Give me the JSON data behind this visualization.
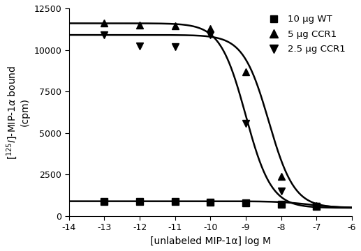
{
  "title": "",
  "xlabel": "[unlabeled MIP-1α] log M",
  "ylabel": "$[^{125}I]$-MIP-1$\\alpha$ bound\n(cpm)",
  "xlim": [
    -14,
    -6
  ],
  "ylim": [
    0,
    12500
  ],
  "xticks": [
    -14,
    -13,
    -12,
    -11,
    -10,
    -9,
    -8,
    -7,
    -6
  ],
  "yticks": [
    0,
    2500,
    5000,
    7500,
    10000,
    12500
  ],
  "series": [
    {
      "label": "10 μg WT",
      "marker": "s",
      "color": "#000000",
      "top": 900,
      "bottom": 500,
      "logEC50": -7.2,
      "hillslope": 1.0,
      "data_x": [
        -13,
        -12,
        -11,
        -10,
        -9,
        -8,
        -7
      ],
      "data_y": [
        900,
        870,
        870,
        860,
        820,
        720,
        600
      ]
    },
    {
      "label": "5 μg CCR1",
      "marker": "^",
      "color": "#000000",
      "top": 11600,
      "bottom": 500,
      "logEC50": -9.0,
      "hillslope": 1.2,
      "data_x": [
        -13,
        -12,
        -11,
        -10,
        -9,
        -8,
        -7
      ],
      "data_y": [
        11600,
        11500,
        11450,
        11300,
        8700,
        2400,
        650
      ]
    },
    {
      "label": "2.5 μg CCR1",
      "marker": "v",
      "color": "#000000",
      "top": 10900,
      "bottom": 500,
      "logEC50": -8.35,
      "hillslope": 1.2,
      "data_x": [
        -13,
        -12,
        -11,
        -10,
        -9,
        -8,
        -7
      ],
      "data_y": [
        10900,
        10250,
        10200,
        10900,
        5600,
        1500,
        600
      ]
    }
  ],
  "background_color": "#ffffff",
  "line_width": 1.8,
  "marker_size": 7,
  "font_size": 10
}
